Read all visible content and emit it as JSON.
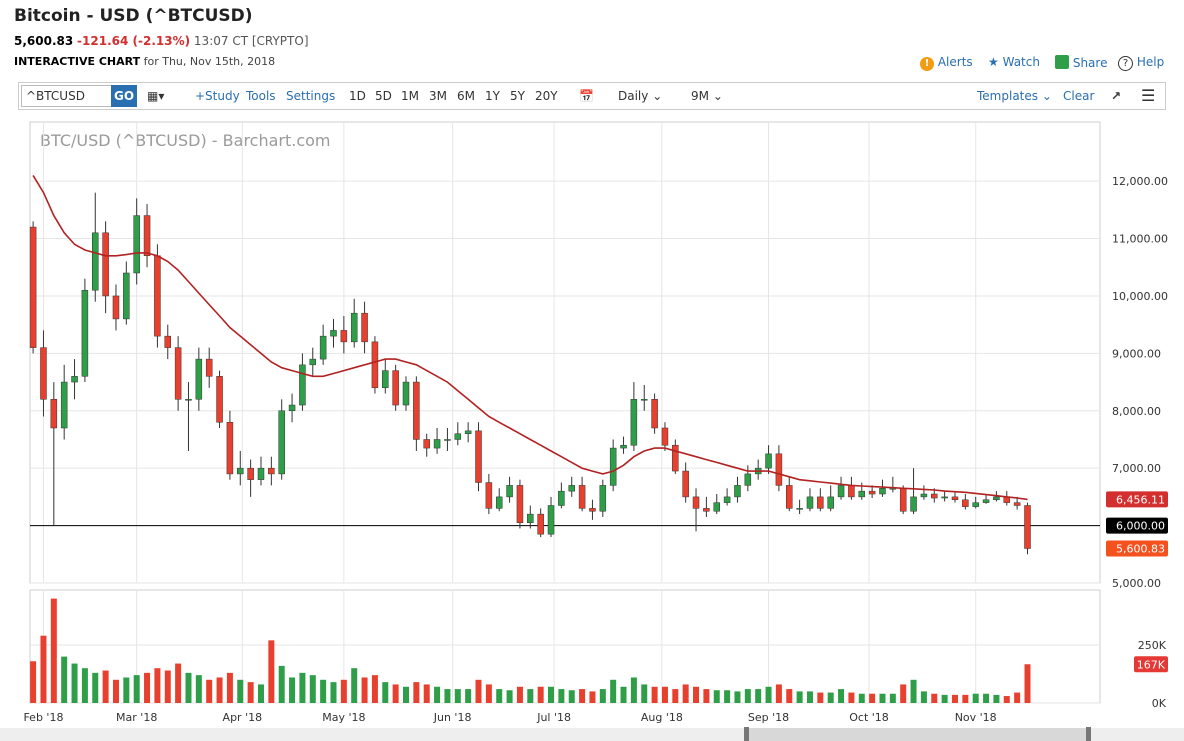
{
  "header": {
    "title": "Bitcoin - USD (^BTCUSD)",
    "last": "5,600.83",
    "change": "-121.64 (-2.13%)",
    "time": "13:07 CT [CRYPTO]",
    "chart_label": "INTERACTIVE CHART",
    "date": "for Thu, Nov 15th, 2018",
    "actions": [
      "Alerts",
      "Watch",
      "Share",
      "Help"
    ]
  },
  "toolbar": {
    "symbol": "^BTCUSD",
    "go": "GO",
    "left": [
      "+Study",
      "Tools",
      "Settings"
    ],
    "periods": [
      "1D",
      "5D",
      "1M",
      "3M",
      "6M",
      "1Y",
      "5Y",
      "20Y"
    ],
    "interval": "Daily",
    "range": "9M",
    "right": [
      "Templates",
      "Clear"
    ]
  },
  "chart_data": {
    "type": "candlestick",
    "title": "BTC/USD (^BTCUSD) - Barchart.com",
    "up_color": "#2e9e48",
    "down_color": "#e8402f",
    "ma_color": "#b22222",
    "grid": true,
    "open": [
      11200,
      9100,
      8200,
      7700,
      8500,
      8600,
      10100,
      11100,
      10000,
      9600,
      10400,
      11400,
      10700,
      9300,
      9100,
      8200,
      8200,
      8900,
      8600,
      7800,
      6900,
      7000,
      6800,
      7000,
      6900,
      8000,
      8100,
      8800,
      8900,
      9300,
      9400,
      9200,
      9700,
      9200,
      8400,
      8700,
      8100,
      8500,
      7500,
      7350,
      7500,
      7500,
      7600,
      7650,
      6750,
      6300,
      6500,
      6700,
      6050,
      6200,
      5850,
      6350,
      6600,
      6700,
      6300,
      6250,
      6700,
      7350,
      7400,
      8200,
      8200,
      7700,
      7400,
      6950,
      6500,
      6300,
      6250,
      6400,
      6500,
      6700,
      6900,
      7000,
      7250,
      6700,
      6300,
      6300,
      6500,
      6300,
      6500,
      6700,
      6500,
      6600,
      6550,
      6650,
      6650,
      6250,
      6500,
      6550,
      6480,
      6500,
      6450,
      6330,
      6400,
      6450,
      6500,
      6400,
      6350
    ],
    "high": [
      11300,
      9400,
      8500,
      8800,
      8900,
      10300,
      11800,
      11300,
      10200,
      10600,
      11700,
      11600,
      10900,
      9500,
      9300,
      8500,
      9100,
      9100,
      8700,
      8000,
      7300,
      7150,
      7200,
      7200,
      8200,
      8300,
      9000,
      9100,
      9500,
      9600,
      9650,
      9950,
      9900,
      9300,
      8900,
      8800,
      8600,
      8600,
      7600,
      7700,
      7700,
      7800,
      7800,
      7800,
      6900,
      6650,
      6850,
      6800,
      6350,
      6300,
      6500,
      6750,
      6850,
      6850,
      6450,
      6800,
      7500,
      7550,
      8500,
      8450,
      8300,
      7800,
      7500,
      7100,
      6650,
      6500,
      6550,
      6650,
      6850,
      7050,
      7150,
      7400,
      7400,
      6850,
      6450,
      6650,
      6650,
      6700,
      6850,
      6850,
      6750,
      6700,
      6800,
      6850,
      6700,
      7000,
      6700,
      6650,
      6600,
      6600,
      6550,
      6500,
      6550,
      6600,
      6600,
      6500,
      6400
    ],
    "low": [
      9000,
      7900,
      6000,
      7500,
      8200,
      8500,
      9900,
      9700,
      9400,
      9500,
      10200,
      10500,
      9100,
      8900,
      8000,
      7300,
      8000,
      8400,
      7700,
      6800,
      6700,
      6500,
      6700,
      6700,
      6800,
      7800,
      8000,
      8600,
      8800,
      9100,
      9000,
      9100,
      9000,
      8300,
      8300,
      8000,
      8000,
      7300,
      7200,
      7250,
      7300,
      7400,
      7450,
      6600,
      6200,
      6250,
      6400,
      5950,
      5950,
      5800,
      5800,
      6300,
      6500,
      6250,
      6100,
      6150,
      6600,
      7250,
      7300,
      8000,
      7600,
      7300,
      6900,
      6400,
      5900,
      6150,
      6200,
      6350,
      6400,
      6600,
      6800,
      6900,
      6600,
      6250,
      6200,
      6250,
      6250,
      6250,
      6450,
      6450,
      6450,
      6480,
      6500,
      6580,
      6200,
      6200,
      6450,
      6400,
      6420,
      6400,
      6280,
      6300,
      6380,
      6420,
      6350,
      6280,
      5500
    ],
    "close": [
      9100,
      8200,
      7700,
      8500,
      8600,
      10100,
      11100,
      10000,
      9600,
      10400,
      11400,
      10700,
      9300,
      9100,
      8200,
      8200,
      8900,
      8600,
      7800,
      6900,
      7000,
      6800,
      7000,
      6900,
      8000,
      8100,
      8800,
      8900,
      9300,
      9400,
      9200,
      9700,
      9200,
      8400,
      8700,
      8100,
      8500,
      7500,
      7350,
      7500,
      7500,
      7600,
      7650,
      6750,
      6300,
      6500,
      6700,
      6050,
      6200,
      5850,
      6350,
      6600,
      6700,
      6300,
      6250,
      6700,
      7350,
      7400,
      8200,
      8200,
      7700,
      7400,
      6950,
      6500,
      6300,
      6250,
      6400,
      6500,
      6700,
      6900,
      7000,
      7250,
      6700,
      6300,
      6300,
      6500,
      6300,
      6500,
      6700,
      6500,
      6600,
      6550,
      6650,
      6650,
      6250,
      6500,
      6550,
      6480,
      6500,
      6450,
      6330,
      6400,
      6450,
      6500,
      6400,
      6350,
      5600.83
    ],
    "ma": [
      12100,
      11800,
      11400,
      11100,
      10900,
      10800,
      10750,
      10700,
      10700,
      10720,
      10750,
      10750,
      10700,
      10600,
      10450,
      10250,
      10050,
      9850,
      9650,
      9450,
      9300,
      9150,
      9000,
      8850,
      8750,
      8700,
      8650,
      8600,
      8600,
      8650,
      8700,
      8750,
      8800,
      8850,
      8900,
      8900,
      8850,
      8800,
      8700,
      8600,
      8500,
      8350,
      8200,
      8050,
      7900,
      7800,
      7700,
      7600,
      7500,
      7400,
      7300,
      7200,
      7100,
      7000,
      6950,
      6900,
      6950,
      7050,
      7200,
      7300,
      7350,
      7350,
      7300,
      7250,
      7200,
      7150,
      7100,
      7050,
      7000,
      6950,
      6950,
      6950,
      6900,
      6850,
      6800,
      6780,
      6760,
      6740,
      6720,
      6700,
      6690,
      6680,
      6670,
      6660,
      6650,
      6640,
      6630,
      6620,
      6600,
      6590,
      6580,
      6560,
      6540,
      6520,
      6500,
      6480,
      6456.11
    ],
    "volume": [
      180000,
      290000,
      450000,
      200000,
      170000,
      150000,
      130000,
      140000,
      100000,
      110000,
      120000,
      130000,
      150000,
      140000,
      170000,
      130000,
      120000,
      100000,
      110000,
      130000,
      100000,
      90000,
      80000,
      270000,
      160000,
      110000,
      130000,
      120000,
      100000,
      90000,
      100000,
      150000,
      110000,
      120000,
      90000,
      80000,
      70000,
      90000,
      80000,
      70000,
      60000,
      60000,
      60000,
      100000,
      80000,
      60000,
      55000,
      70000,
      60000,
      70000,
      70000,
      60000,
      55000,
      60000,
      50000,
      60000,
      100000,
      70000,
      110000,
      80000,
      70000,
      70000,
      60000,
      80000,
      70000,
      60000,
      55000,
      55000,
      50000,
      60000,
      60000,
      70000,
      80000,
      60000,
      50000,
      50000,
      45000,
      45000,
      60000,
      45000,
      40000,
      40000,
      40000,
      40000,
      80000,
      100000,
      50000,
      40000,
      35000,
      35000,
      35000,
      40000,
      40000,
      35000,
      30000,
      45000,
      167000
    ],
    "ylim": [
      5000,
      13030
    ],
    "yticks": [
      {
        "value": 5000,
        "label": "5,000.00"
      },
      {
        "value": 6000,
        "label": "6,000.00"
      },
      {
        "value": 7000,
        "label": "7,000.00"
      },
      {
        "value": 8000,
        "label": "8,000.00"
      },
      {
        "value": 9000,
        "label": "9,000.00"
      },
      {
        "value": 10000,
        "label": "10,000.00"
      },
      {
        "value": 11000,
        "label": "11,000.00"
      },
      {
        "value": 12000,
        "label": "12,000.00"
      }
    ],
    "volume_ylim": [
      0,
      487000
    ],
    "volume_yticks": [
      {
        "value": 0,
        "label": "0K"
      },
      {
        "value": 250000,
        "label": "250K"
      }
    ],
    "xlim": [
      -0.3,
      103
    ],
    "xticks": [
      {
        "value": 1,
        "label": "Feb '18"
      },
      {
        "value": 10,
        "label": "Mar '18"
      },
      {
        "value": 20.2,
        "label": "Apr '18"
      },
      {
        "value": 30,
        "label": "May '18"
      },
      {
        "value": 40.5,
        "label": "Jun '18"
      },
      {
        "value": 50.3,
        "label": "Jul '18"
      },
      {
        "value": 60.7,
        "label": "Aug '18"
      },
      {
        "value": 71,
        "label": "Sep '18"
      },
      {
        "value": 80.7,
        "label": "Oct '18"
      },
      {
        "value": 91,
        "label": "Nov '18"
      }
    ],
    "hline": {
      "value": 6000,
      "label": "6,000.00",
      "color": "#000000"
    },
    "markers": [
      {
        "value": 6456.11,
        "label": "6,456.11",
        "color": "#d32f2f"
      },
      {
        "value": 5600.83,
        "label": "5,600.83",
        "color": "#f4511e"
      }
    ],
    "volume_marker": {
      "value": 167000,
      "label": "167K",
      "color": "#e53935"
    }
  }
}
